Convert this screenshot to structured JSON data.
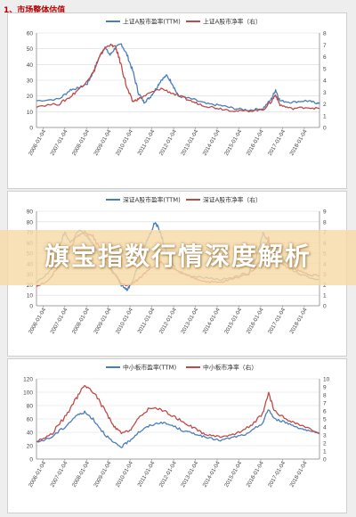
{
  "section_title": "1、市场整体估值",
  "banner_text": "旗宝指数行情深度解析",
  "colors": {
    "pe": "#4a7ebb",
    "pb": "#be4b48",
    "axis": "#888888",
    "grid": "#d9d9d9"
  },
  "chart_data": [
    {
      "type": "line",
      "title": "",
      "x": [
        "2006-01-04",
        "2007-01-04",
        "2008-01-04",
        "2009-01-04",
        "2010-01-04",
        "2011-01-04",
        "2012-01-04",
        "2013-01-04",
        "2014-01-04",
        "2015-01-04",
        "2016-01-04",
        "2017-01-04",
        "2018-01-04"
      ],
      "ylim": [
        0,
        60
      ],
      "yticks": [
        0,
        10,
        20,
        30,
        40,
        50,
        60
      ],
      "y2lim": [
        0,
        8
      ],
      "y2ticks": [
        0,
        1,
        2,
        3,
        4,
        5,
        6,
        7,
        8
      ],
      "grid": true,
      "legend_position": "top",
      "series": [
        {
          "name": "上证A股市盈率(TTM)",
          "axis": "left",
          "color": "#4a7ebb",
          "points": [
            [
              0.0,
              17
            ],
            [
              0.08,
              18
            ],
            [
              0.12,
              24
            ],
            [
              0.15,
              25
            ],
            [
              0.18,
              28
            ],
            [
              0.2,
              35
            ],
            [
              0.22,
              44
            ],
            [
              0.24,
              51
            ],
            [
              0.26,
              46
            ],
            [
              0.28,
              51
            ],
            [
              0.3,
              53
            ],
            [
              0.32,
              46
            ],
            [
              0.34,
              36
            ],
            [
              0.36,
              22
            ],
            [
              0.38,
              16
            ],
            [
              0.4,
              19
            ],
            [
              0.42,
              24
            ],
            [
              0.44,
              30
            ],
            [
              0.46,
              33
            ],
            [
              0.48,
              28
            ],
            [
              0.5,
              20
            ],
            [
              0.55,
              18
            ],
            [
              0.6,
              15
            ],
            [
              0.65,
              14
            ],
            [
              0.7,
              12
            ],
            [
              0.75,
              11
            ],
            [
              0.8,
              12
            ],
            [
              0.83,
              18
            ],
            [
              0.845,
              24
            ],
            [
              0.86,
              17
            ],
            [
              0.9,
              16
            ],
            [
              0.95,
              17
            ],
            [
              0.98,
              16
            ],
            [
              1.0,
              15
            ]
          ]
        },
        {
          "name": "上证A股市净率（右）",
          "axis": "right",
          "color": "#be4b48",
          "points": [
            [
              0.0,
              1.8
            ],
            [
              0.08,
              2.0
            ],
            [
              0.12,
              2.6
            ],
            [
              0.16,
              3.5
            ],
            [
              0.2,
              4.6
            ],
            [
              0.22,
              5.8
            ],
            [
              0.24,
              6.7
            ],
            [
              0.26,
              7.0
            ],
            [
              0.28,
              6.8
            ],
            [
              0.3,
              5.2
            ],
            [
              0.32,
              3.3
            ],
            [
              0.34,
              2.2
            ],
            [
              0.36,
              2.4
            ],
            [
              0.4,
              2.9
            ],
            [
              0.44,
              3.3
            ],
            [
              0.48,
              2.9
            ],
            [
              0.52,
              2.5
            ],
            [
              0.56,
              2.1
            ],
            [
              0.6,
              1.8
            ],
            [
              0.65,
              1.6
            ],
            [
              0.7,
              1.4
            ],
            [
              0.75,
              1.4
            ],
            [
              0.8,
              1.5
            ],
            [
              0.83,
              2.2
            ],
            [
              0.845,
              2.8
            ],
            [
              0.86,
              1.9
            ],
            [
              0.9,
              1.6
            ],
            [
              0.95,
              1.7
            ],
            [
              1.0,
              1.6
            ]
          ]
        }
      ]
    },
    {
      "type": "line",
      "title": "",
      "x": [
        "2006-01-04",
        "2007-01-04",
        "2008-01-04",
        "2009-01-04",
        "2010-01-04",
        "2011-01-04",
        "2012-01-04",
        "2013-01-04",
        "2014-01-04",
        "2015-01-04",
        "2016-01-04",
        "2017-01-04",
        "2018-01-04"
      ],
      "ylim": [
        0,
        90
      ],
      "yticks": [
        0,
        10,
        20,
        30,
        40,
        50,
        60,
        70,
        80,
        90
      ],
      "y2lim": [
        0,
        9
      ],
      "y2ticks": [
        0,
        1,
        2,
        3,
        4,
        5,
        6,
        7,
        8,
        9
      ],
      "grid": true,
      "legend_position": "top",
      "series": [
        {
          "name": "深证A股市盈率(TTM)",
          "axis": "left",
          "color": "#4a7ebb",
          "points": [
            [
              0.0,
              22
            ],
            [
              0.03,
              28
            ],
            [
              0.06,
              38
            ],
            [
              0.08,
              55
            ],
            [
              0.1,
              70
            ],
            [
              0.12,
              60
            ],
            [
              0.15,
              72
            ],
            [
              0.18,
              66
            ],
            [
              0.2,
              58
            ],
            [
              0.22,
              50
            ],
            [
              0.25,
              38
            ],
            [
              0.28,
              30
            ],
            [
              0.3,
              20
            ],
            [
              0.32,
              15
            ],
            [
              0.34,
              24
            ],
            [
              0.36,
              40
            ],
            [
              0.38,
              55
            ],
            [
              0.4,
              68
            ],
            [
              0.42,
              80
            ],
            [
              0.44,
              68
            ],
            [
              0.46,
              50
            ],
            [
              0.48,
              40
            ],
            [
              0.5,
              33
            ],
            [
              0.55,
              28
            ],
            [
              0.6,
              27
            ],
            [
              0.65,
              25
            ],
            [
              0.7,
              27
            ],
            [
              0.75,
              32
            ],
            [
              0.78,
              48
            ],
            [
              0.8,
              70
            ],
            [
              0.82,
              60
            ],
            [
              0.84,
              50
            ],
            [
              0.87,
              45
            ],
            [
              0.9,
              35
            ],
            [
              0.93,
              30
            ],
            [
              0.96,
              27
            ],
            [
              1.0,
              25
            ]
          ]
        },
        {
          "name": "深证A股市净率（右）",
          "axis": "right",
          "color": "#be4b48",
          "points": [
            [
              0.0,
              1.9
            ],
            [
              0.05,
              2.5
            ],
            [
              0.1,
              4.8
            ],
            [
              0.14,
              6.5
            ],
            [
              0.17,
              7.0
            ],
            [
              0.2,
              6.6
            ],
            [
              0.23,
              5.0
            ],
            [
              0.27,
              3.2
            ],
            [
              0.3,
              2.1
            ],
            [
              0.33,
              1.9
            ],
            [
              0.36,
              2.5
            ],
            [
              0.4,
              3.6
            ],
            [
              0.44,
              4.1
            ],
            [
              0.48,
              3.5
            ],
            [
              0.52,
              3.0
            ],
            [
              0.56,
              2.6
            ],
            [
              0.6,
              2.3
            ],
            [
              0.65,
              2.2
            ],
            [
              0.7,
              2.6
            ],
            [
              0.75,
              3.1
            ],
            [
              0.8,
              4.4
            ],
            [
              0.82,
              6.4
            ],
            [
              0.84,
              4.6
            ],
            [
              0.88,
              3.7
            ],
            [
              0.92,
              3.4
            ],
            [
              0.96,
              3.0
            ],
            [
              1.0,
              2.8
            ]
          ]
        }
      ]
    },
    {
      "type": "line",
      "title": "",
      "x": [
        "2006-01-04",
        "2007-01-04",
        "2008-01-04",
        "2009-01-04",
        "2010-01-04",
        "2011-01-04",
        "2012-01-04",
        "2013-01-04",
        "2014-01-04",
        "2015-01-04",
        "2016-01-04",
        "2017-01-04",
        "2018-01-04"
      ],
      "ylim": [
        0,
        120
      ],
      "yticks": [
        0,
        20,
        40,
        60,
        80,
        100,
        120
      ],
      "y2lim": [
        0,
        10
      ],
      "y2ticks": [
        0,
        1,
        2,
        3,
        4,
        5,
        6,
        7,
        8,
        9,
        10
      ],
      "grid": true,
      "legend_position": "top",
      "series": [
        {
          "name": "中小板市盈率(TTM)",
          "axis": "left",
          "color": "#4a7ebb",
          "points": [
            [
              0.0,
              25
            ],
            [
              0.05,
              32
            ],
            [
              0.1,
              48
            ],
            [
              0.14,
              65
            ],
            [
              0.17,
              70
            ],
            [
              0.2,
              60
            ],
            [
              0.24,
              38
            ],
            [
              0.27,
              25
            ],
            [
              0.3,
              18
            ],
            [
              0.33,
              28
            ],
            [
              0.36,
              40
            ],
            [
              0.4,
              50
            ],
            [
              0.44,
              55
            ],
            [
              0.48,
              50
            ],
            [
              0.52,
              42
            ],
            [
              0.56,
              38
            ],
            [
              0.6,
              32
            ],
            [
              0.65,
              28
            ],
            [
              0.7,
              33
            ],
            [
              0.75,
              38
            ],
            [
              0.8,
              55
            ],
            [
              0.82,
              75
            ],
            [
              0.84,
              60
            ],
            [
              0.88,
              55
            ],
            [
              0.92,
              48
            ],
            [
              0.96,
              42
            ],
            [
              1.0,
              38
            ]
          ]
        },
        {
          "name": "中小板市净率（右）",
          "axis": "right",
          "color": "#be4b48",
          "points": [
            [
              0.0,
              2.2
            ],
            [
              0.05,
              3.0
            ],
            [
              0.1,
              5.2
            ],
            [
              0.14,
              7.5
            ],
            [
              0.17,
              9.2
            ],
            [
              0.2,
              8.4
            ],
            [
              0.24,
              6.2
            ],
            [
              0.27,
              4.2
            ],
            [
              0.3,
              3.2
            ],
            [
              0.33,
              3.6
            ],
            [
              0.36,
              5.0
            ],
            [
              0.4,
              6.4
            ],
            [
              0.44,
              6.2
            ],
            [
              0.48,
              5.4
            ],
            [
              0.52,
              4.6
            ],
            [
              0.56,
              3.8
            ],
            [
              0.6,
              3.0
            ],
            [
              0.65,
              2.8
            ],
            [
              0.7,
              3.1
            ],
            [
              0.75,
              4.0
            ],
            [
              0.8,
              5.6
            ],
            [
              0.82,
              8.2
            ],
            [
              0.84,
              6.0
            ],
            [
              0.88,
              5.0
            ],
            [
              0.92,
              4.4
            ],
            [
              0.96,
              3.8
            ],
            [
              1.0,
              3.2
            ]
          ]
        }
      ]
    }
  ]
}
